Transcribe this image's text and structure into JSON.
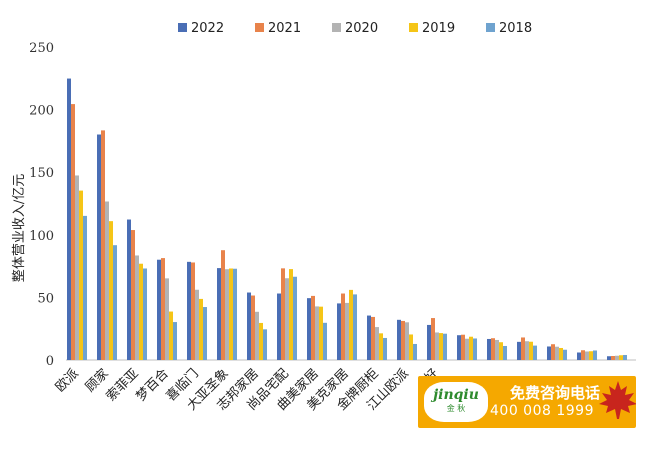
{
  "chart_data": {
    "type": "bar",
    "title": "",
    "xlabel": "",
    "ylabel": "整体营业收入/亿元",
    "ylim": [
      0,
      250
    ],
    "yticks": [
      0,
      50,
      100,
      150,
      200,
      250
    ],
    "grid": false,
    "legend_position": "top",
    "categories": [
      "欧派",
      "顾家",
      "索菲亚",
      "梦百合",
      "喜临门",
      "大亚圣象",
      "志邦家居",
      "尚品宅配",
      "曲美家居",
      "美克家居",
      "金牌厨柜",
      "江山欧派",
      "好",
      "",
      "",
      "",
      "",
      "",
      ""
    ],
    "series": [
      {
        "name": "2022",
        "color": "#4a6eb5",
        "values": [
          224.8,
          180.1,
          112.2,
          80.1,
          78.4,
          73.4,
          53.9,
          53.1,
          49.4,
          45.2,
          35.5,
          32.1,
          28.0,
          19.8,
          16.8,
          14.5,
          10.8,
          6.0,
          3.0
        ]
      },
      {
        "name": "2021",
        "color": "#e8834b",
        "values": [
          204.4,
          183.4,
          103.8,
          81.4,
          77.9,
          87.7,
          51.5,
          73.2,
          51.2,
          53.1,
          34.4,
          31.2,
          33.5,
          20.2,
          17.4,
          18.0,
          12.6,
          7.8,
          3.2
        ]
      },
      {
        "name": "2020",
        "color": "#b3b3b3",
        "values": [
          147.4,
          126.6,
          83.5,
          65.2,
          56.1,
          72.5,
          38.5,
          65.3,
          42.8,
          45.6,
          26.3,
          30.1,
          22.0,
          17.0,
          16.0,
          15.0,
          10.6,
          6.8,
          3.4
        ]
      },
      {
        "name": "2019",
        "color": "#f5c517",
        "values": [
          135.3,
          110.9,
          76.9,
          38.7,
          48.8,
          73.1,
          29.6,
          72.6,
          42.6,
          56.0,
          21.3,
          20.4,
          21.5,
          18.6,
          14.2,
          14.6,
          9.6,
          7.0,
          3.8
        ]
      },
      {
        "name": "2018",
        "color": "#6fa3cf",
        "values": [
          115.1,
          91.7,
          73.1,
          30.3,
          42.3,
          72.9,
          24.5,
          66.5,
          29.7,
          52.4,
          17.6,
          12.8,
          21.0,
          17.2,
          11.2,
          11.5,
          8.2,
          7.6,
          4.0
        ]
      }
    ]
  },
  "ad_banner": {
    "logo_main": "jinqiu",
    "logo_sub": "金 秋",
    "title": "免费咨询电话",
    "phone": "400 008 1999",
    "icon": "maple-leaf-icon",
    "color": "#f5a800"
  }
}
